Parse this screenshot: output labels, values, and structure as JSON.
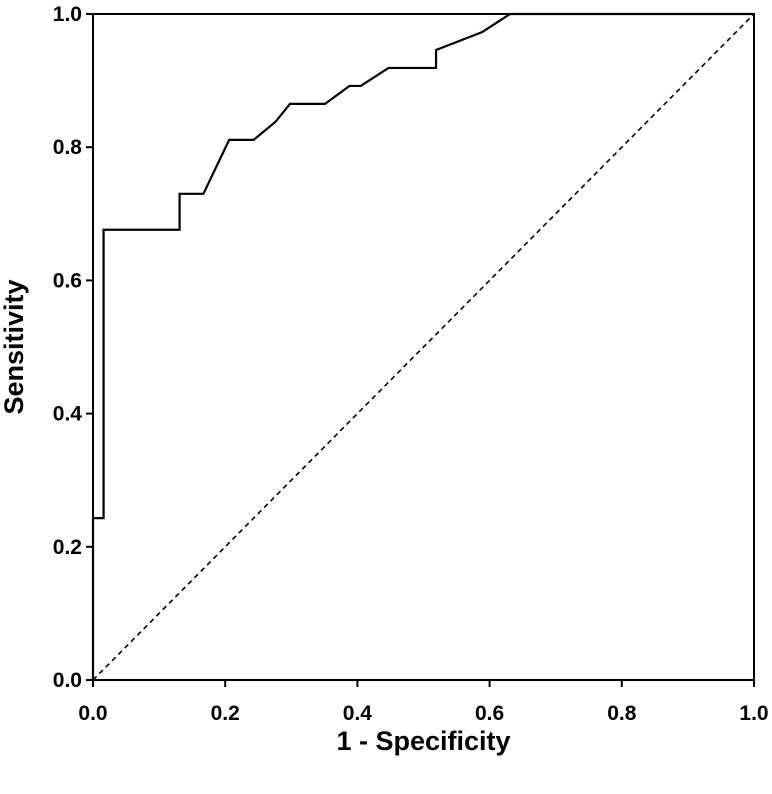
{
  "chart_data": {
    "type": "line",
    "title": "",
    "xlabel": "1 - Specificity",
    "ylabel": "Sensitivity",
    "xlim": [
      0,
      1
    ],
    "ylim": [
      0,
      1
    ],
    "x_ticks": [
      "0.0",
      "0.2",
      "0.4",
      "0.6",
      "0.8",
      "1.0"
    ],
    "y_ticks": [
      "0.0",
      "0.2",
      "0.4",
      "0.6",
      "0.8",
      "1.0"
    ],
    "grid": false,
    "legend": "none",
    "series": [
      {
        "style": "solid",
        "color": "#000000",
        "x": [
          0,
          0,
          0.016,
          0.016,
          0.131,
          0.131,
          0.167,
          0.206,
          0.243,
          0.276,
          0.298,
          0.351,
          0.388,
          0.405,
          0.447,
          0.519,
          0.519,
          0.589,
          0.631,
          1.0
        ],
        "y": [
          0,
          0.243,
          0.243,
          0.676,
          0.676,
          0.73,
          0.73,
          0.811,
          0.811,
          0.838,
          0.865,
          0.865,
          0.892,
          0.892,
          0.919,
          0.919,
          0.946,
          0.973,
          1.0,
          1.0
        ]
      },
      {
        "style": "dashed",
        "color": "#000000",
        "x": [
          0,
          1
        ],
        "y": [
          0,
          1
        ]
      }
    ]
  }
}
